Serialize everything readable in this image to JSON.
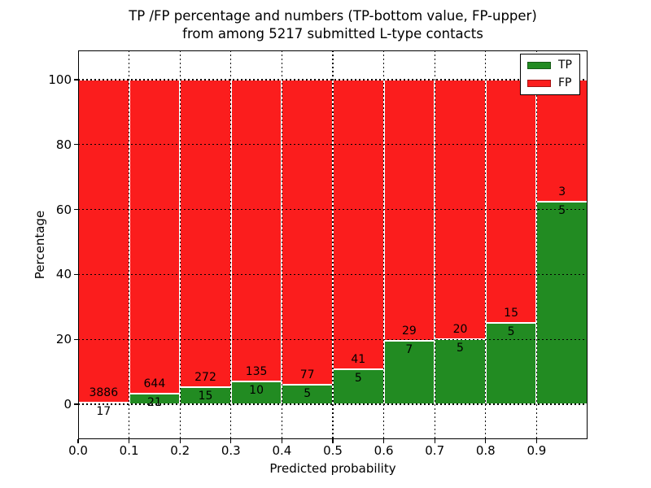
{
  "figure": {
    "background": "#ffffff",
    "title_lines": [
      "TP /FP percentage and numbers (TP-bottom value, FP-upper)",
      "from among 5217 submitted L-type contacts"
    ]
  },
  "chart_data": {
    "type": "bar",
    "stacked": true,
    "normalized_to_percent": true,
    "title": "TP /FP percentage and numbers (TP-bottom value, FP-upper) from among 5217 submitted L-type contacts",
    "total_submitted_contacts": 5217,
    "xlabel": "Predicted probability",
    "ylabel": "Percentage",
    "xlim": [
      0.0,
      1.0
    ],
    "ylim": [
      -10.8,
      109.0
    ],
    "bar_bin_width": 0.1,
    "x_tick_labels": [
      "0.0",
      "0.1",
      "0.2",
      "0.3",
      "0.4",
      "0.5",
      "0.6",
      "0.7",
      "0.8",
      "0.9"
    ],
    "y_ticks": [
      0,
      20,
      40,
      60,
      80,
      100
    ],
    "y_tick_labels": [
      "0",
      "20",
      "40",
      "60",
      "80",
      "100"
    ],
    "grid": {
      "visible": true,
      "linestyle": "dotted",
      "color": "#000000",
      "drawn_above_bars": true
    },
    "bar_edge_color": "#ffffff",
    "categories": [
      "0.0-0.1",
      "0.1-0.2",
      "0.2-0.3",
      "0.3-0.4",
      "0.4-0.5",
      "0.5-0.6",
      "0.6-0.7",
      "0.7-0.8",
      "0.8-0.9",
      "0.9-1.0"
    ],
    "series": [
      {
        "name": "TP",
        "color": "#228b22",
        "position": "bottom",
        "counts": [
          17,
          21,
          15,
          10,
          5,
          5,
          7,
          5,
          5,
          5
        ],
        "percent": [
          0.44,
          3.16,
          5.23,
          6.9,
          6.1,
          10.87,
          19.44,
          20.0,
          25.0,
          62.5
        ]
      },
      {
        "name": "FP",
        "color": "#fb1d1d",
        "position": "top",
        "counts": [
          3886,
          644,
          272,
          135,
          77,
          41,
          29,
          20,
          15,
          3
        ],
        "percent": [
          99.56,
          96.84,
          94.77,
          93.1,
          93.9,
          89.13,
          80.56,
          80.0,
          75.0,
          37.5
        ]
      }
    ],
    "legend": {
      "position": "upper right",
      "entries": [
        {
          "label": "TP",
          "color": "#228b22"
        },
        {
          "label": "FP",
          "color": "#fb1d1d"
        }
      ]
    }
  }
}
